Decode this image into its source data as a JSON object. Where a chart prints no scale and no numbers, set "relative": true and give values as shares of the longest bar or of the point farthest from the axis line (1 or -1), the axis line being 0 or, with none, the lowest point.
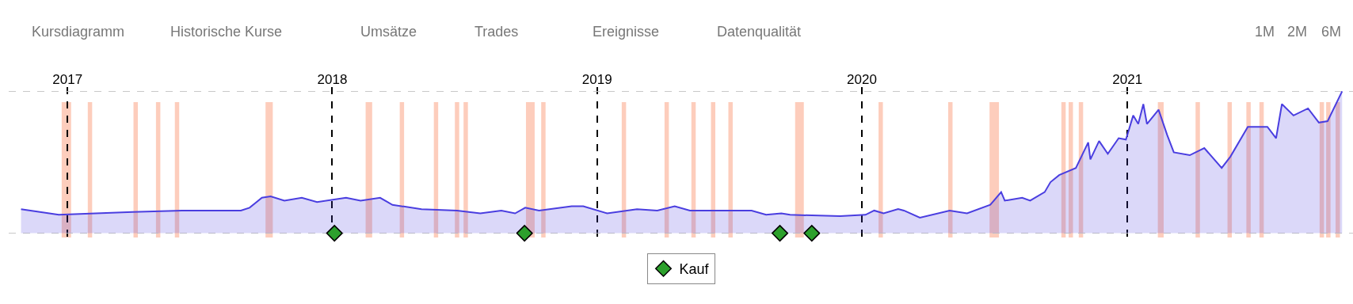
{
  "chart_data": {
    "type": "area",
    "relative": true,
    "grid": true,
    "legend": "bottom",
    "tick_labels": "x",
    "xlim": [
      "2016-10-12",
      "2021-11-08"
    ],
    "xticks": [
      {
        "value": "2017-01-01",
        "label": "2017"
      },
      {
        "value": "2018-01-01",
        "label": "2018"
      },
      {
        "value": "2019-01-01",
        "label": "2019"
      },
      {
        "value": "2020-01-01",
        "label": "2020"
      },
      {
        "value": "2021-01-01",
        "label": "2021"
      }
    ],
    "annotations": [
      "Kursdiagramm",
      "Historische Kurse",
      "Umsätze",
      "Trades",
      "Ereignisse",
      "Datenqualität",
      "1M",
      "2M",
      "6M"
    ],
    "series": [
      {
        "color": "#4a3ee0",
        "x": [
          "2016-10-29",
          "2016-12-20",
          "2017-04-01",
          "2017-06-08",
          "2017-08-28",
          "2017-09-09",
          "2017-09-26",
          "2017-10-08",
          "2017-10-27",
          "2017-11-20",
          "2017-12-11",
          "2018-01-20",
          "2018-02-09",
          "2018-03-08",
          "2018-03-25",
          "2018-05-04",
          "2018-06-22",
          "2018-07-24",
          "2018-08-22",
          "2018-09-10",
          "2018-09-24",
          "2018-10-13",
          "2018-11-27",
          "2018-12-13",
          "2019-01-15",
          "2019-02-25",
          "2019-03-25",
          "2019-04-18",
          "2019-05-09",
          "2019-08-02",
          "2019-08-22",
          "2019-09-12",
          "2019-09-24",
          "2019-12-02",
          "2020-01-06",
          "2020-01-18",
          "2020-01-31",
          "2020-02-20",
          "2020-02-28",
          "2020-03-21",
          "2020-05-01",
          "2020-05-25",
          "2020-06-26",
          "2020-07-11",
          "2020-07-16",
          "2020-08-09",
          "2020-08-20",
          "2020-09-09",
          "2020-09-17",
          "2020-09-29",
          "2020-10-22",
          "2020-11-08",
          "2020-11-11",
          "2020-11-23",
          "2020-12-05",
          "2020-12-20",
          "2020-12-30",
          "2021-01-09",
          "2021-01-16",
          "2021-01-23",
          "2021-01-28",
          "2021-02-13",
          "2021-02-25",
          "2021-03-06",
          "2021-03-28",
          "2021-04-17",
          "2021-05-11",
          "2021-05-23",
          "2021-06-16",
          "2021-07-13",
          "2021-07-25",
          "2021-08-02",
          "2021-08-18",
          "2021-09-07",
          "2021-09-22",
          "2021-10-04",
          "2021-10-24"
        ],
        "values": [
          0.17,
          0.13,
          0.15,
          0.16,
          0.16,
          0.18,
          0.25,
          0.26,
          0.23,
          0.25,
          0.22,
          0.25,
          0.23,
          0.25,
          0.2,
          0.17,
          0.16,
          0.14,
          0.16,
          0.14,
          0.18,
          0.16,
          0.19,
          0.19,
          0.14,
          0.17,
          0.16,
          0.19,
          0.16,
          0.16,
          0.13,
          0.14,
          0.13,
          0.12,
          0.13,
          0.16,
          0.14,
          0.17,
          0.16,
          0.11,
          0.16,
          0.14,
          0.2,
          0.29,
          0.23,
          0.25,
          0.23,
          0.29,
          0.36,
          0.41,
          0.46,
          0.64,
          0.52,
          0.65,
          0.56,
          0.67,
          0.66,
          0.83,
          0.77,
          0.91,
          0.77,
          0.87,
          0.69,
          0.57,
          0.55,
          0.6,
          0.46,
          0.54,
          0.75,
          0.75,
          0.67,
          0.91,
          0.83,
          0.88,
          0.78,
          0.79,
          1.0
        ]
      },
      {
        "type": "scatter",
        "name": "Kauf",
        "color": "#2ca02c",
        "marker": "diamond",
        "x": [
          "2018-01-04",
          "2018-09-23",
          "2019-09-10",
          "2019-10-24"
        ],
        "values": [
          0,
          0,
          0,
          0
        ]
      }
    ],
    "bands": [
      {
        "axis": "x",
        "from": "2016-12-24",
        "to": "2017-01-06",
        "color": "#fdc4b0"
      },
      {
        "axis": "x",
        "from": "2017-01-29",
        "to": "2017-02-04",
        "color": "#fdc4b0"
      },
      {
        "axis": "x",
        "from": "2017-04-02",
        "to": "2017-04-08",
        "color": "#fdc4b0"
      },
      {
        "axis": "x",
        "from": "2017-05-03",
        "to": "2017-05-09",
        "color": "#fdc4b0"
      },
      {
        "axis": "x",
        "from": "2017-05-29",
        "to": "2017-06-04",
        "color": "#fdc4b0"
      },
      {
        "axis": "x",
        "from": "2017-10-01",
        "to": "2017-10-11",
        "color": "#fdc4b0"
      },
      {
        "axis": "x",
        "from": "2018-02-16",
        "to": "2018-02-25",
        "color": "#fdc4b0"
      },
      {
        "axis": "x",
        "from": "2018-04-04",
        "to": "2018-04-10",
        "color": "#fdc4b0"
      },
      {
        "axis": "x",
        "from": "2018-05-21",
        "to": "2018-05-27",
        "color": "#fdc4b0"
      },
      {
        "axis": "x",
        "from": "2018-06-19",
        "to": "2018-06-25",
        "color": "#fdc4b0"
      },
      {
        "axis": "x",
        "from": "2018-07-01",
        "to": "2018-07-07",
        "color": "#fdc4b0"
      },
      {
        "axis": "x",
        "from": "2018-09-25",
        "to": "2018-10-07",
        "color": "#fdc4b0"
      },
      {
        "axis": "x",
        "from": "2018-10-16",
        "to": "2018-10-22",
        "color": "#fdc4b0"
      },
      {
        "axis": "x",
        "from": "2019-02-04",
        "to": "2019-02-10",
        "color": "#fdc4b0"
      },
      {
        "axis": "x",
        "from": "2019-04-04",
        "to": "2019-04-10",
        "color": "#fdc4b0"
      },
      {
        "axis": "x",
        "from": "2019-05-11",
        "to": "2019-05-17",
        "color": "#fdc4b0"
      },
      {
        "axis": "x",
        "from": "2019-06-07",
        "to": "2019-06-13",
        "color": "#fdc4b0"
      },
      {
        "axis": "x",
        "from": "2019-07-01",
        "to": "2019-07-07",
        "color": "#fdc4b0"
      },
      {
        "axis": "x",
        "from": "2019-10-01",
        "to": "2019-10-13",
        "color": "#fdc4b0"
      },
      {
        "axis": "x",
        "from": "2020-01-24",
        "to": "2020-01-30",
        "color": "#fdc4b0"
      },
      {
        "axis": "x",
        "from": "2020-04-29",
        "to": "2020-05-05",
        "color": "#fdc4b0"
      },
      {
        "axis": "x",
        "from": "2020-06-25",
        "to": "2020-07-08",
        "color": "#fdc4b0"
      },
      {
        "axis": "x",
        "from": "2020-10-02",
        "to": "2020-10-08",
        "color": "#fdc4b0"
      },
      {
        "axis": "x",
        "from": "2020-10-12",
        "to": "2020-10-18",
        "color": "#fdc4b0"
      },
      {
        "axis": "x",
        "from": "2020-10-26",
        "to": "2020-11-01",
        "color": "#fdc4b0"
      },
      {
        "axis": "x",
        "from": "2021-02-12",
        "to": "2021-02-20",
        "color": "#fdc4b0"
      },
      {
        "axis": "x",
        "from": "2021-04-05",
        "to": "2021-04-11",
        "color": "#fdc4b0"
      },
      {
        "axis": "x",
        "from": "2021-05-19",
        "to": "2021-05-25",
        "color": "#fdc4b0"
      },
      {
        "axis": "x",
        "from": "2021-06-14",
        "to": "2021-06-20",
        "color": "#fdc4b0"
      },
      {
        "axis": "x",
        "from": "2021-07-02",
        "to": "2021-07-08",
        "color": "#fdc4b0"
      },
      {
        "axis": "x",
        "from": "2021-09-23",
        "to": "2021-09-29",
        "color": "#fdc4b0"
      },
      {
        "axis": "x",
        "from": "2021-10-02",
        "to": "2021-10-08",
        "color": "#fdc4b0"
      },
      {
        "axis": "x",
        "from": "2021-10-15",
        "to": "2021-10-21",
        "color": "#fdc4b0"
      }
    ]
  }
}
